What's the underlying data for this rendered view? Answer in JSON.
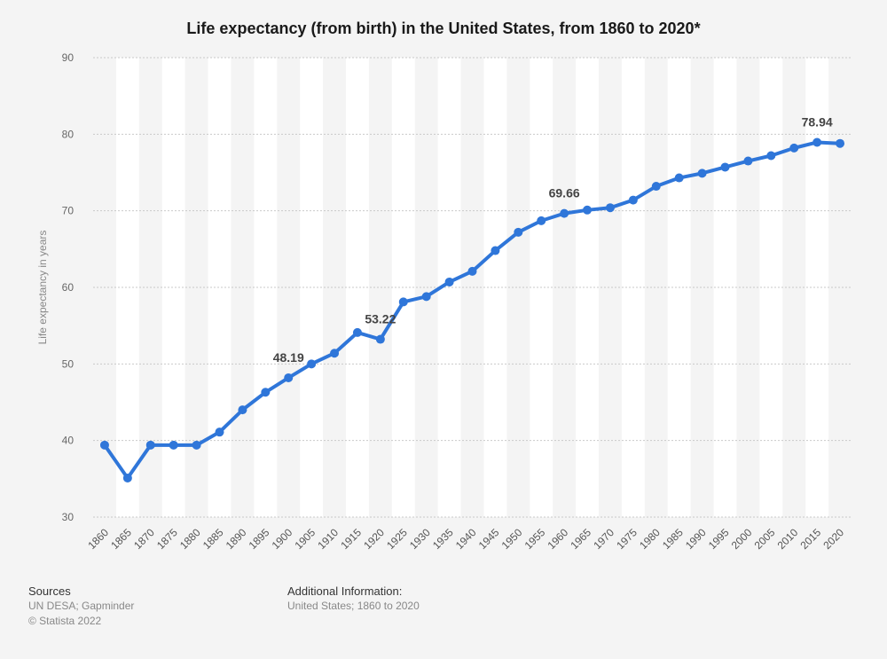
{
  "chart_data": {
    "type": "line",
    "title": "Life expectancy (from birth) in the United States, from 1860 to 2020*",
    "ylabel": "Life expectancy in years",
    "xlabel": "",
    "ylim": [
      30,
      90
    ],
    "yticks": [
      30,
      40,
      50,
      60,
      70,
      80,
      90
    ],
    "grid": true,
    "legend": "none",
    "line_color": "#2f76d9",
    "x": [
      "1860",
      "1865",
      "1870",
      "1875",
      "1880",
      "1885",
      "1890",
      "1895",
      "1900",
      "1905",
      "1910",
      "1915",
      "1920",
      "1925",
      "1930",
      "1935",
      "1940",
      "1945",
      "1950",
      "1955",
      "1960",
      "1965",
      "1970",
      "1975",
      "1980",
      "1985",
      "1990",
      "1995",
      "2000",
      "2005",
      "2010",
      "2015",
      "2020"
    ],
    "series": [
      {
        "values": [
          39.4,
          35.1,
          39.4,
          39.4,
          39.4,
          41.1,
          44.0,
          46.3,
          48.19,
          50.0,
          51.4,
          54.1,
          53.22,
          58.1,
          58.8,
          60.7,
          62.1,
          64.8,
          67.2,
          68.7,
          69.66,
          70.1,
          70.4,
          71.4,
          73.2,
          74.3,
          74.9,
          75.7,
          76.5,
          77.2,
          78.2,
          78.94,
          78.8
        ]
      }
    ],
    "annotations": [
      {
        "x": "1900",
        "label": "48.19"
      },
      {
        "x": "1920",
        "label": "53.22"
      },
      {
        "x": "1960",
        "label": "69.66"
      },
      {
        "x": "2015",
        "label": "78.94"
      }
    ]
  },
  "footer": {
    "sources_heading": "Sources",
    "sources_line1": "UN DESA; Gapminder",
    "sources_line2": "© Statista 2022",
    "info_heading": "Additional Information:",
    "info_line1": "United States; 1860 to 2020"
  }
}
